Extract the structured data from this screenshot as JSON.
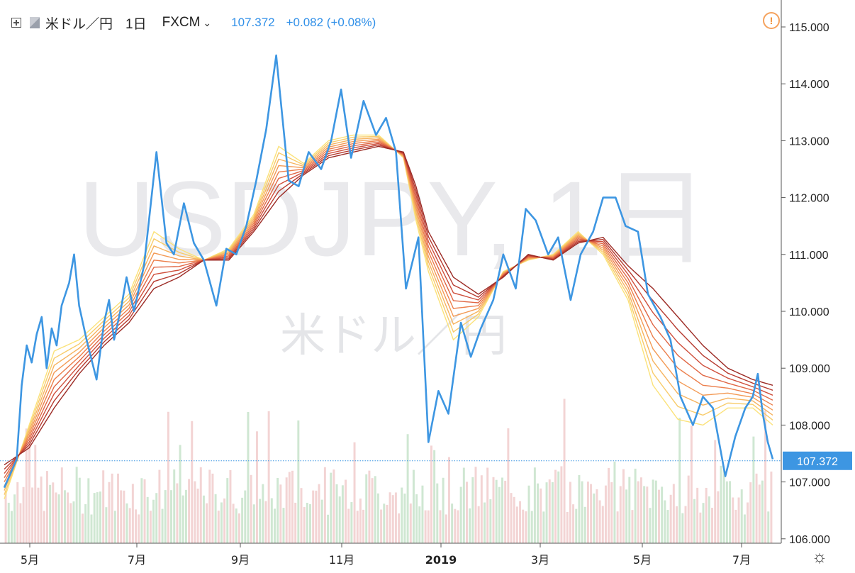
{
  "header": {
    "symbol": "米ドル／円",
    "resolution": "1日",
    "exchange": "FXCM",
    "last_price": "107.372",
    "change": "+0.082 (+0.08%)"
  },
  "watermark": {
    "main": "USDJPY, 1日",
    "sub": "米ドル／円"
  },
  "icons": {
    "add": "plus-box-icon",
    "flag": "flag-icon",
    "chevron": "chevron-down-icon",
    "alert": "alert-icon",
    "settings": "gear-icon"
  },
  "colors": {
    "price_line": "#3d96e2",
    "ma_ribbon": [
      "#fbe27a",
      "#f8cc6b",
      "#f6b35e",
      "#f39a55",
      "#ec7f4c",
      "#e06745",
      "#cf4f3c",
      "#b73b30",
      "#9c2b25"
    ],
    "volume_up": "#cfe7d2",
    "volume_down": "#f3d4d4",
    "price_label_bg": "#3d96e2"
  },
  "chart_data": {
    "type": "line",
    "title": "USDJPY, 1日",
    "x_tick_labels": [
      "5月",
      "7月",
      "9月",
      "11月",
      "2019",
      "3月",
      "5月",
      "7月"
    ],
    "y_axis": {
      "min": 106.0,
      "max": 115.2,
      "tick_labels": [
        "106.000",
        "107.000",
        "108.000",
        "109.000",
        "110.000",
        "111.000",
        "112.000",
        "113.000",
        "114.000",
        "115.000"
      ]
    },
    "last_value_label": "107.372",
    "x_range": [
      0,
      308
    ],
    "series": [
      {
        "role": "price",
        "x": [
          0,
          3,
          5,
          7,
          9,
          11,
          13,
          15,
          17,
          19,
          21,
          23,
          26,
          28,
          30,
          33,
          37,
          40,
          42,
          44,
          47,
          49,
          52,
          56,
          61,
          65,
          68,
          72,
          76,
          80,
          85,
          89,
          93,
          97,
          101,
          105,
          109,
          114,
          118,
          122,
          127,
          131,
          135,
          139,
          144,
          149,
          153,
          157,
          161,
          166,
          170,
          174,
          178,
          183,
          187,
          191,
          196,
          200,
          205,
          209,
          213,
          218,
          222,
          227,
          231,
          236,
          240,
          245,
          249,
          254,
          258,
          263,
          267,
          271,
          276,
          280,
          284,
          289,
          293,
          297,
          300,
          302,
          304,
          306,
          308
        ],
        "values": [
          106.9,
          107.2,
          107.4,
          108.7,
          109.4,
          109.1,
          109.6,
          109.9,
          109.0,
          109.7,
          109.4,
          110.1,
          110.5,
          111.0,
          110.1,
          109.5,
          108.8,
          109.8,
          110.2,
          109.5,
          110.1,
          110.6,
          110.0,
          110.8,
          112.8,
          111.2,
          111.0,
          111.9,
          111.2,
          110.9,
          110.1,
          111.1,
          111.0,
          111.5,
          112.3,
          113.2,
          114.5,
          112.3,
          112.2,
          112.8,
          112.5,
          113.0,
          113.9,
          112.7,
          113.7,
          113.1,
          113.4,
          112.8,
          110.4,
          111.3,
          107.7,
          108.6,
          108.2,
          109.8,
          109.2,
          109.7,
          110.2,
          111.0,
          110.4,
          111.8,
          111.6,
          111.0,
          111.3,
          110.2,
          111.0,
          111.4,
          112.0,
          112.0,
          111.5,
          111.4,
          110.3,
          109.9,
          109.5,
          108.5,
          108.0,
          108.5,
          108.3,
          107.1,
          107.8,
          108.3,
          108.5,
          108.9,
          108.2,
          107.7,
          107.4
        ]
      },
      {
        "role": "ma_fastest",
        "x": [
          0,
          10,
          20,
          30,
          40,
          50,
          60,
          70,
          80,
          90,
          100,
          110,
          120,
          130,
          140,
          150,
          160,
          165,
          170,
          180,
          190,
          200,
          210,
          220,
          230,
          240,
          250,
          260,
          270,
          280,
          290,
          300,
          308
        ],
        "values": [
          106.7,
          108.0,
          109.3,
          109.5,
          109.9,
          110.3,
          111.4,
          111.1,
          110.9,
          111.1,
          111.7,
          112.9,
          112.6,
          113.0,
          113.1,
          113.1,
          112.7,
          111.6,
          110.7,
          109.5,
          109.9,
          110.7,
          110.9,
          111.0,
          111.4,
          111.0,
          110.2,
          108.7,
          108.1,
          108.0,
          108.3,
          108.3,
          108.0
        ]
      },
      {
        "role": "ma_slowest",
        "x": [
          0,
          10,
          20,
          30,
          40,
          50,
          60,
          70,
          80,
          90,
          100,
          110,
          120,
          130,
          140,
          150,
          160,
          165,
          170,
          180,
          190,
          200,
          210,
          220,
          230,
          240,
          250,
          260,
          270,
          280,
          290,
          300,
          308
        ],
        "values": [
          107.3,
          107.6,
          108.3,
          108.9,
          109.4,
          109.8,
          110.4,
          110.6,
          110.9,
          110.9,
          111.4,
          112.0,
          112.4,
          112.7,
          112.8,
          112.9,
          112.8,
          112.2,
          111.4,
          110.6,
          110.3,
          110.6,
          111.0,
          110.9,
          111.2,
          111.3,
          110.8,
          110.4,
          109.9,
          109.4,
          109.0,
          108.8,
          108.7
        ]
      }
    ],
    "ma_ribbon_count": 9,
    "volume": "bars along bottom, green for up days and red for down days",
    "grid": false,
    "legend": "none"
  }
}
